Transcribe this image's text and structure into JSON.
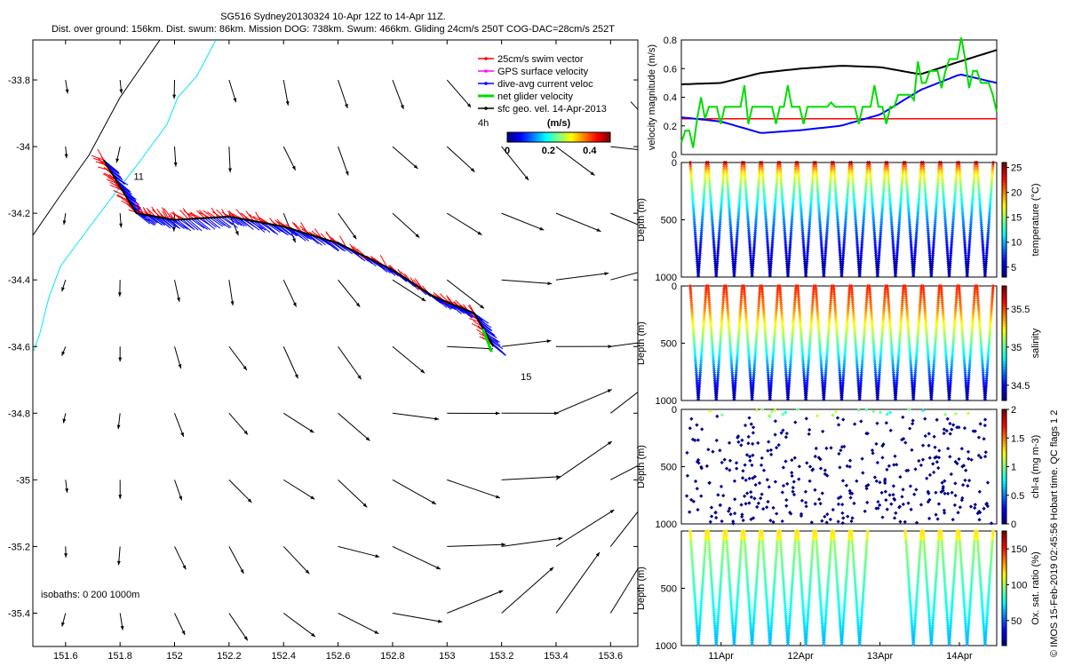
{
  "title": {
    "line1": "SG516 Sydney20130324 10-Apr 12Z to 14-Apr 11Z.",
    "line2": "Dist. over ground: 156km. Dist. swum: 86km. Mission DOG: 738km. Swum: 466km. Gliding 24cm/s 250T COG-DAC=28cm/s 252T"
  },
  "colors": {
    "swim": "#ff0000",
    "dac": "#0000ff",
    "net": "#00dd00",
    "coast": "#00e5ff",
    "isobath": "#000000",
    "ref_line": "#ff0000"
  },
  "chart_data": [
    {
      "type": "map",
      "name": "track-map",
      "xlim": [
        151.48,
        153.7
      ],
      "ylim": [
        -35.5,
        -33.68
      ],
      "x_ticks": [
        "151.6",
        "151.8",
        "152",
        "152.2",
        "152.4",
        "152.6",
        "152.8",
        "153",
        "153.2",
        "153.4",
        "153.6"
      ],
      "x_tick_values": [
        151.6,
        151.8,
        152.0,
        152.2,
        152.4,
        152.6,
        152.8,
        153.0,
        153.2,
        153.4,
        153.6
      ],
      "y_ticks": [
        "-33.8",
        "-34",
        "-34.2",
        "-34.4",
        "-34.6",
        "-34.8",
        "-35",
        "-35.2",
        "-35.4"
      ],
      "y_tick_values": [
        -33.8,
        -34.0,
        -34.2,
        -34.4,
        -34.6,
        -34.8,
        -35.0,
        -35.2,
        -35.4
      ],
      "legend": [
        {
          "label": "25cm/s swim vector",
          "color": "#ff0000"
        },
        {
          "label": "GPS surface velocity",
          "color": "#ff00ff"
        },
        {
          "label": "dive-avg current veloc",
          "color": "#0000ff"
        },
        {
          "label": "net glider velocity",
          "color": "#00dd00"
        },
        {
          "label": "sfc geo. vel. 14-Apr-2013",
          "color": "#000000"
        }
      ],
      "legend_extra": "4h",
      "colorbar": {
        "label": "(m/s)",
        "ticks": [
          "0",
          "0.2",
          "0.4"
        ],
        "tick_values": [
          0,
          0.2,
          0.4
        ],
        "range": [
          0,
          0.5
        ]
      },
      "isobath_label": "isobaths: 0   200   1000m",
      "track": [
        [
          151.74,
          -34.04
        ],
        [
          151.8,
          -34.12
        ],
        [
          151.86,
          -34.2
        ],
        [
          152.0,
          -34.22
        ],
        [
          152.2,
          -34.21
        ],
        [
          152.4,
          -34.24
        ],
        [
          152.6,
          -34.29
        ],
        [
          152.8,
          -34.37
        ],
        [
          152.95,
          -34.45
        ],
        [
          153.1,
          -34.5
        ],
        [
          153.17,
          -34.6
        ]
      ],
      "day_labels": [
        {
          "text": "11",
          "x": 151.85,
          "y": -34.1
        },
        {
          "text": "15",
          "x": 153.27,
          "y": -34.7
        }
      ],
      "geo_vectors": {
        "lons": [
          151.6,
          151.8,
          152.0,
          152.2,
          152.4,
          152.6,
          152.8,
          153.0,
          153.2,
          153.4,
          153.6
        ],
        "lats": [
          -33.8,
          -34.0,
          -34.2,
          -34.4,
          -34.6,
          -34.8,
          -35.0,
          -35.2,
          -35.4
        ]
      }
    },
    {
      "type": "line",
      "name": "velocity-magnitude",
      "ylabel": "velocity magnitude (m/s)",
      "ylim": [
        0,
        0.8
      ],
      "yticks": [
        "0",
        "0.2",
        "0.4",
        "0.6",
        "0.8"
      ],
      "ytick_values": [
        0,
        0.2,
        0.4,
        0.6,
        0.8
      ],
      "reference_value": 0.25,
      "x_days": [
        10.5,
        11.0,
        11.5,
        12.0,
        12.5,
        13.0,
        13.5,
        14.0,
        14.46
      ],
      "series": [
        {
          "color": "#000000",
          "values": [
            0.49,
            0.5,
            0.57,
            0.6,
            0.62,
            0.61,
            0.56,
            0.65,
            0.73
          ]
        },
        {
          "color": "#0000ff",
          "values": [
            0.26,
            0.23,
            0.15,
            0.17,
            0.2,
            0.28,
            0.45,
            0.56,
            0.5
          ]
        },
        {
          "color": "#00dd00",
          "values": [
            0.12,
            0.37,
            0.35,
            0.36,
            0.34,
            0.3,
            0.5,
            0.68,
            0.4
          ]
        }
      ]
    },
    {
      "type": "scatter",
      "name": "temperature",
      "ylabel": "Depth (m)",
      "cbar_label": "temperature (°C)",
      "clim": [
        3,
        26
      ],
      "cticks": [
        "5",
        "10",
        "15",
        "20",
        "25"
      ],
      "ctick_values": [
        5,
        10,
        15,
        20,
        25
      ],
      "ylim": [
        1000,
        0
      ],
      "yticks": [
        "0",
        "500",
        "1000"
      ],
      "ytick_values": [
        0,
        500,
        1000
      ]
    },
    {
      "type": "scatter",
      "name": "salinity",
      "ylabel": "Depth (m)",
      "cbar_label": "salinity",
      "clim": [
        34.3,
        35.8
      ],
      "cticks": [
        "34.5",
        "35",
        "35.5"
      ],
      "ctick_values": [
        34.5,
        35.0,
        35.5
      ],
      "ylim": [
        1000,
        0
      ],
      "yticks": [
        "0",
        "500",
        "1000"
      ],
      "ytick_values": [
        0,
        500,
        1000
      ]
    },
    {
      "type": "scatter",
      "name": "chl-a",
      "ylabel": "Depth (m)",
      "cbar_label": "chl-a (mg m-3)",
      "clim": [
        0,
        2
      ],
      "cticks": [
        "0",
        "0.5",
        "1",
        "1.5",
        "2"
      ],
      "ctick_values": [
        0,
        0.5,
        1,
        1.5,
        2
      ],
      "ylim": [
        1000,
        0
      ],
      "yticks": [
        "0",
        "500",
        "1000"
      ],
      "ytick_values": [
        0,
        500,
        1000
      ]
    },
    {
      "type": "scatter",
      "name": "oxygen",
      "ylabel": "Depth (m)",
      "cbar_label": "Ox. sat. ratio (%)",
      "clim": [
        15,
        175
      ],
      "cticks": [
        "50",
        "100",
        "150"
      ],
      "ctick_values": [
        50,
        100,
        150
      ],
      "ylim": [
        1000,
        0
      ],
      "yticks": [
        "500",
        "1000"
      ],
      "ytick_values": [
        500,
        1000
      ],
      "xticks": [
        "11Apr",
        "12Apr",
        "13Apr",
        "14Apr"
      ],
      "xtick_values": [
        11.0,
        12.0,
        13.0,
        14.0
      ],
      "xlim": [
        10.5,
        14.47
      ]
    }
  ],
  "footer": "© IMOS 15-Feb-2019 02:45:56 Hobart time. QC flags 1  2"
}
